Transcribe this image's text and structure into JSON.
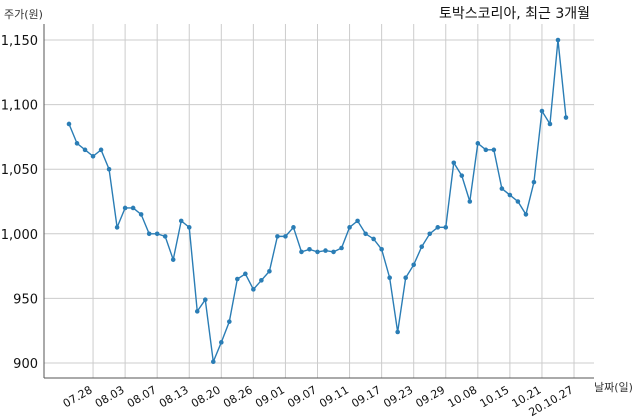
{
  "chart_data": {
    "type": "line",
    "title": "토박스코리아, 최근 3개월",
    "ylabel": "주가(원)",
    "xlabel": "날짜(일)",
    "ylim": [
      888,
      1160
    ],
    "yticks": [
      900,
      950,
      1000,
      1050,
      1100,
      1150
    ],
    "ytick_labels": [
      "900",
      "950",
      "1,000",
      "1,050",
      "1,100",
      "1,150"
    ],
    "xtick_labels": [
      "07.28",
      "08.03",
      "08.07",
      "08.13",
      "08.20",
      "08.26",
      "09.01",
      "09.07",
      "09.11",
      "09.17",
      "09.23",
      "09.29",
      "10.08",
      "10.15",
      "10.21",
      "20.10.27"
    ],
    "xtick_index": [
      3,
      7,
      11,
      15,
      19,
      23,
      27,
      31,
      35,
      39,
      43,
      47,
      51,
      55,
      59,
      63
    ],
    "grid": true,
    "line_color": "#2a7db5",
    "series": [
      {
        "values": [
          1085,
          1070,
          1065,
          1060,
          1065,
          1050,
          1005,
          1020,
          1020,
          1015,
          1000,
          1000,
          998,
          980,
          1010,
          1005,
          940,
          949,
          901,
          916,
          932,
          965,
          969,
          957,
          964,
          971,
          998,
          998,
          1005,
          986,
          988,
          986,
          987,
          986,
          989,
          1005,
          1010,
          1000,
          996,
          988,
          966,
          924,
          966,
          976,
          990,
          1000,
          1005,
          1005,
          1055,
          1045,
          1025,
          1070,
          1065,
          1065,
          1035,
          1030,
          1025,
          1015,
          1040,
          1095,
          1085,
          1150,
          1090
        ]
      }
    ]
  }
}
